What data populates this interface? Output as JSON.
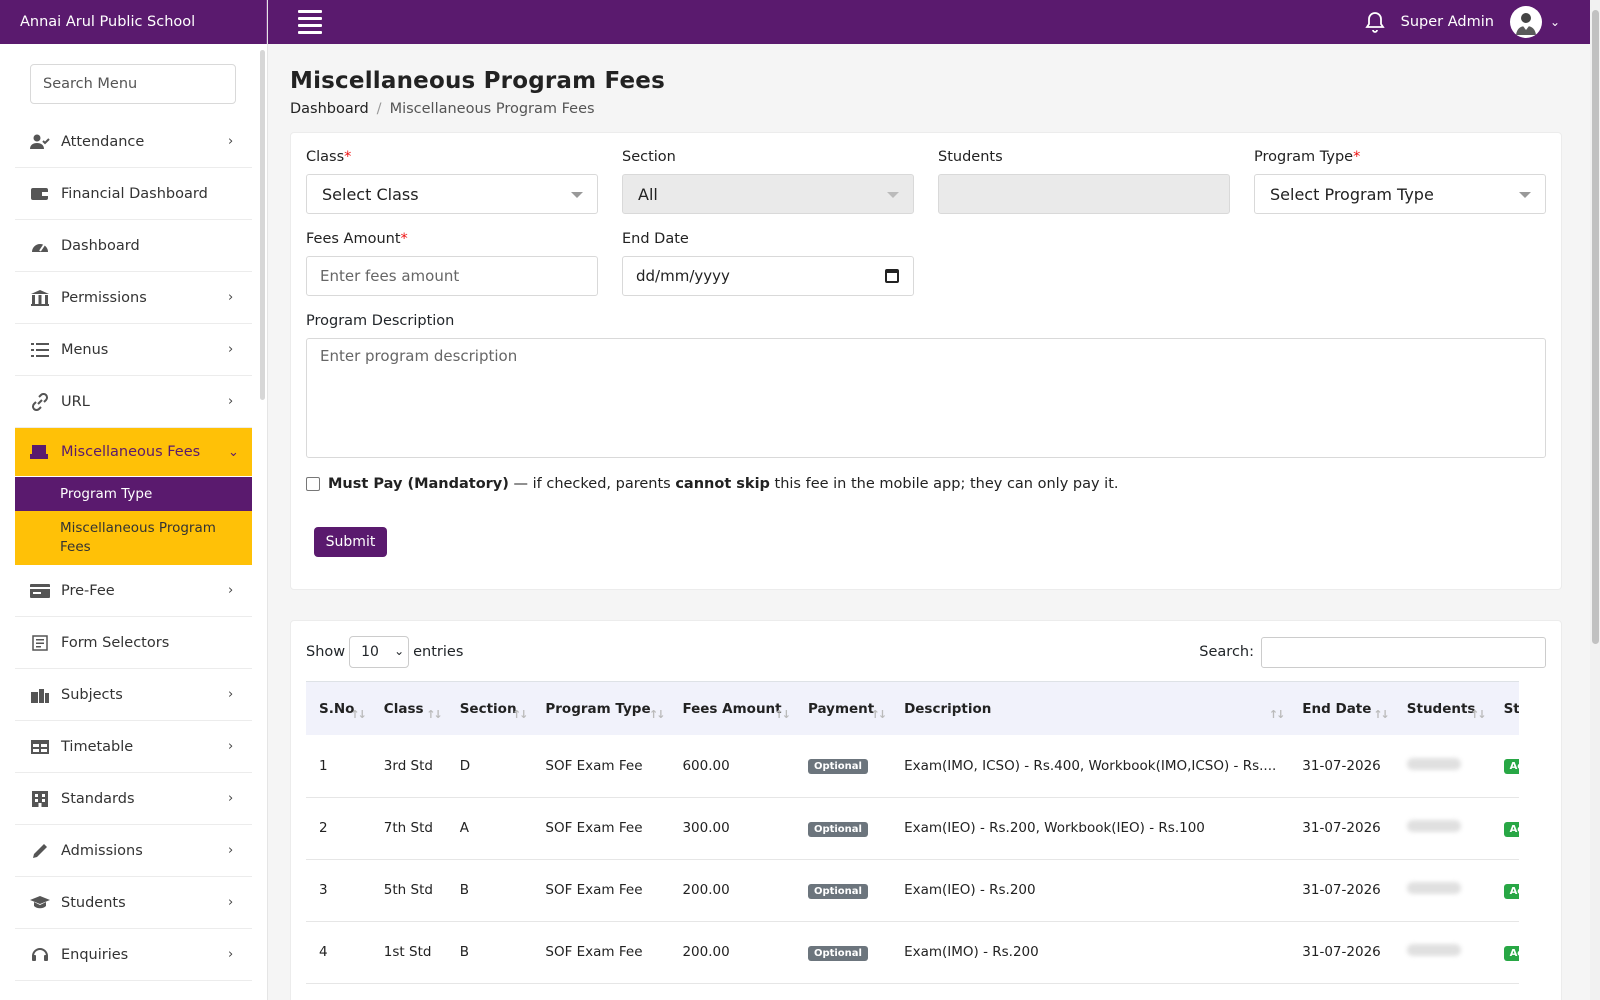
{
  "brand": "Annai Arul Public School",
  "topbar": {
    "user": "Super Admin"
  },
  "sidebar": {
    "search_placeholder": "Search Menu",
    "items": [
      {
        "label": "Attendance",
        "icon": "user-check-icon",
        "chevron": true
      },
      {
        "label": "Financial Dashboard",
        "icon": "wallet-icon",
        "chevron": false
      },
      {
        "label": "Dashboard",
        "icon": "gauge-icon",
        "chevron": false
      },
      {
        "label": "Permissions",
        "icon": "building-icon",
        "chevron": true
      },
      {
        "label": "Menus",
        "icon": "list-icon",
        "chevron": true
      },
      {
        "label": "URL",
        "icon": "link-icon",
        "chevron": true
      },
      {
        "label": "Miscellaneous Fees",
        "icon": "receipt-icon",
        "chevron": true,
        "active": true
      },
      {
        "label": "Pre-Fee",
        "icon": "card-icon",
        "chevron": true
      },
      {
        "label": "Form Selectors",
        "icon": "form-icon",
        "chevron": false
      },
      {
        "label": "Subjects",
        "icon": "books-icon",
        "chevron": true
      },
      {
        "label": "Timetable",
        "icon": "table-icon",
        "chevron": true
      },
      {
        "label": "Standards",
        "icon": "school-icon",
        "chevron": true
      },
      {
        "label": "Admissions",
        "icon": "pen-icon",
        "chevron": true
      },
      {
        "label": "Students",
        "icon": "graduation-cap-icon",
        "chevron": true
      },
      {
        "label": "Enquiries",
        "icon": "headset-icon",
        "chevron": true
      }
    ],
    "sub_items": {
      "program_type": "Program Type",
      "misc_program_fees": "Miscellaneous Program Fees"
    }
  },
  "page": {
    "title": "Miscellaneous Program Fees",
    "breadcrumb": {
      "home": "Dashboard",
      "separator": "/",
      "current": "Miscellaneous Program Fees"
    }
  },
  "form": {
    "class_label": "Class",
    "class_value": "Select Class",
    "section_label": "Section",
    "section_value": "All",
    "students_label": "Students",
    "program_type_label": "Program Type",
    "program_type_value": "Select Program Type",
    "fees_label": "Fees Amount",
    "fees_placeholder": "Enter fees amount",
    "end_date_label": "End Date",
    "end_date_placeholder": "dd/mm/yyyy",
    "desc_label": "Program Description",
    "desc_placeholder": "Enter program description",
    "mandatory_bold": "Must Pay (Mandatory)",
    "mandatory_text1": " — if checked, parents ",
    "mandatory_bold2": "cannot skip",
    "mandatory_text2": " this fee in the mobile app; they can only pay it.",
    "submit_label": "Submit",
    "required_mark": "*"
  },
  "table": {
    "show_label": "Show",
    "length_value": "10",
    "entries_label": "entries",
    "search_label": "Search:",
    "columns": [
      "S.No",
      "Class",
      "Section",
      "Program Type",
      "Fees Amount",
      "Payment",
      "Description",
      "End Date",
      "Students",
      "Status"
    ],
    "rows": [
      {
        "sno": "1",
        "class": "3rd Std",
        "section": "D",
        "program_type": "SOF Exam Fee",
        "fees": "600.00",
        "payment": "Optional",
        "description": "Exam(IMO, ICSO) - Rs.400, Workbook(IMO,ICSO) - Rs....",
        "end_date": "31-07-2026",
        "status": "Active"
      },
      {
        "sno": "2",
        "class": "7th Std",
        "section": "A",
        "program_type": "SOF Exam Fee",
        "fees": "300.00",
        "payment": "Optional",
        "description": "Exam(IEO) - Rs.200, Workbook(IEO) - Rs.100",
        "end_date": "31-07-2026",
        "status": "Active"
      },
      {
        "sno": "3",
        "class": "5th Std",
        "section": "B",
        "program_type": "SOF Exam Fee",
        "fees": "200.00",
        "payment": "Optional",
        "description": "Exam(IEO) - Rs.200",
        "end_date": "31-07-2026",
        "status": "Active"
      },
      {
        "sno": "4",
        "class": "1st Std",
        "section": "B",
        "program_type": "SOF Exam Fee",
        "fees": "200.00",
        "payment": "Optional",
        "description": "Exam(IMO) - Rs.200",
        "end_date": "31-07-2026",
        "status": "Active"
      }
    ]
  },
  "colors": {
    "primary": "#5a1a6e",
    "accent": "#ffc107",
    "optional_badge": "#6c757d",
    "active_badge": "#28a745"
  }
}
